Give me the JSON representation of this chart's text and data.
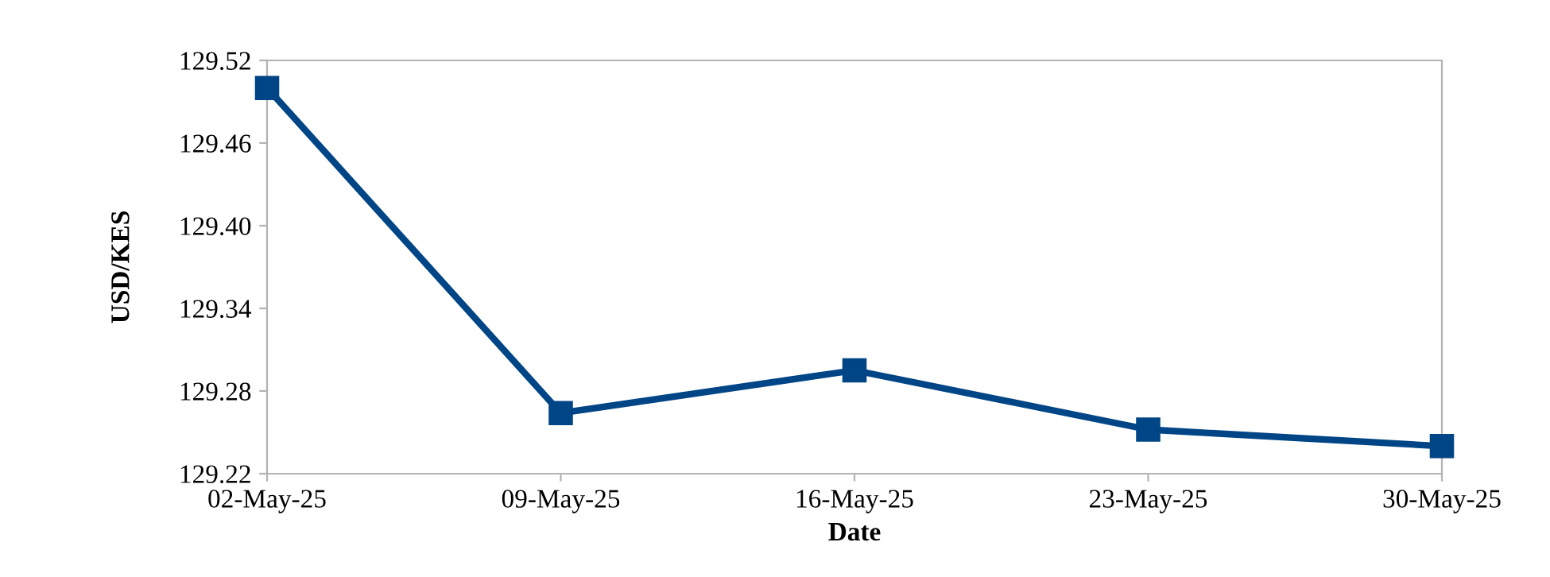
{
  "chart_data": {
    "type": "line",
    "xlabel": "Date",
    "ylabel": "USD/KES",
    "categories": [
      "02-May-25",
      "09-May-25",
      "16-May-25",
      "23-May-25",
      "30-May-25"
    ],
    "series": [
      {
        "color": "#004586",
        "values": [
          129.5,
          129.264,
          129.295,
          129.252,
          129.24
        ]
      }
    ],
    "ylim": [
      129.22,
      129.52
    ],
    "yticks": [
      129.22,
      129.28,
      129.34,
      {
        "value": 129.4,
        "label": "129.40"
      },
      129.46,
      129.52
    ],
    "marker": "square",
    "line_style": "solid",
    "grid": false,
    "legend": false
  }
}
